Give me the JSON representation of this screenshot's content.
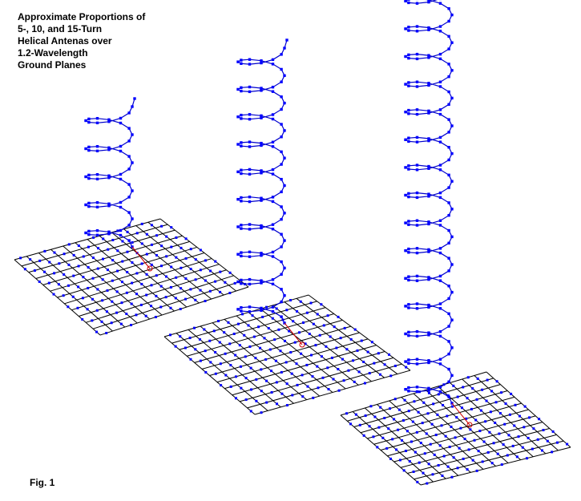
{
  "title_lines": [
    "Approximate Proportions of",
    "5-, 10, and 15-Turn",
    "Helical Antenas over",
    "1.2-Wavelength",
    "Ground Planes"
  ],
  "figure_label": "Fig. 1",
  "colors": {
    "background": "#ffffff",
    "wire": "#0000cc",
    "node": "#0000ff",
    "feed_marker": "#cc0000"
  },
  "antennas": [
    {
      "name": "5-turn",
      "turns": 5
    },
    {
      "name": "10-turn",
      "turns": 10
    },
    {
      "name": "15-turn",
      "turns": 15
    }
  ]
}
